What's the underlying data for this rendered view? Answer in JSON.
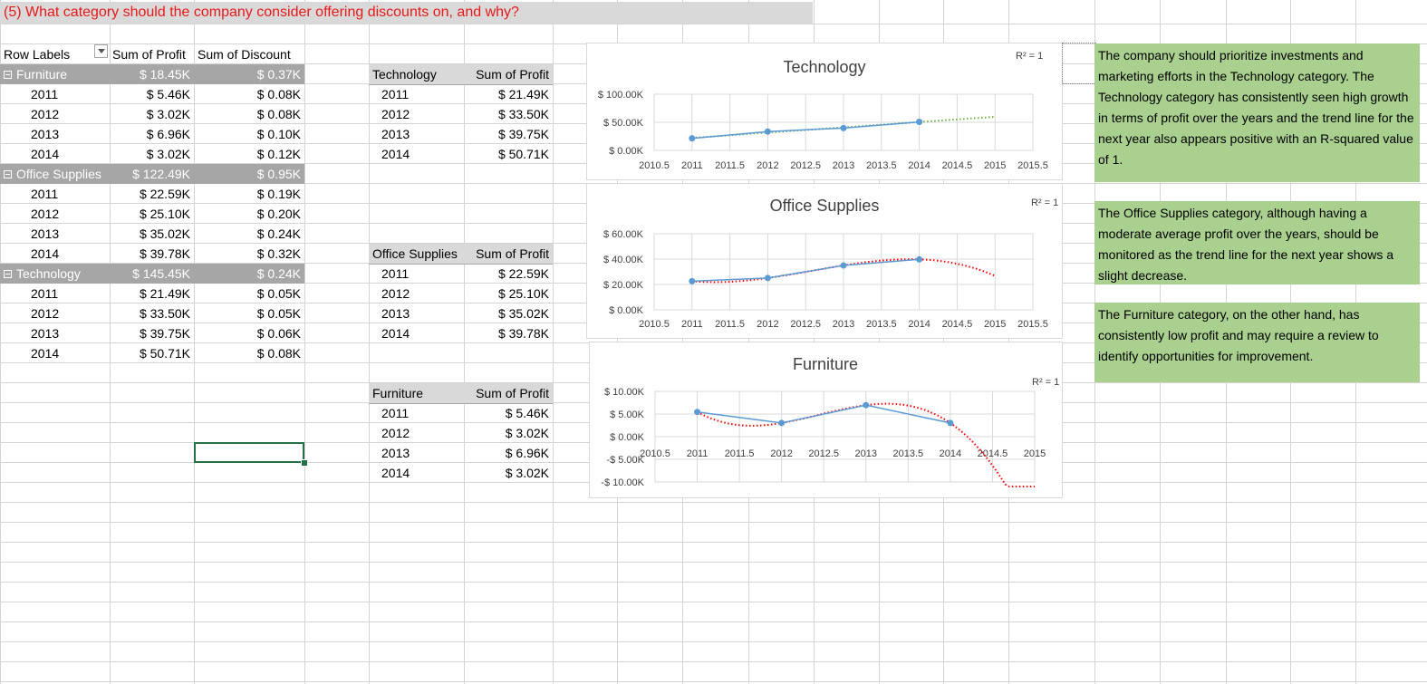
{
  "question": "(5) What category should the company consider offering discounts on, and why?",
  "pivot": {
    "headers": [
      "Row Labels",
      "Sum of Profit",
      "Sum of Discount"
    ],
    "groups": [
      {
        "label": "Furniture",
        "profit": "$ 18.45K",
        "discount": "$ 0.37K",
        "rows": [
          {
            "year": "2011",
            "profit": "$ 5.46K",
            "discount": "$ 0.08K"
          },
          {
            "year": "2012",
            "profit": "$ 3.02K",
            "discount": "$ 0.08K"
          },
          {
            "year": "2013",
            "profit": "$ 6.96K",
            "discount": "$ 0.10K"
          },
          {
            "year": "2014",
            "profit": "$ 3.02K",
            "discount": "$ 0.12K"
          }
        ]
      },
      {
        "label": "Office Supplies",
        "profit": "$ 122.49K",
        "discount": "$ 0.95K",
        "rows": [
          {
            "year": "2011",
            "profit": "$ 22.59K",
            "discount": "$ 0.19K"
          },
          {
            "year": "2012",
            "profit": "$ 25.10K",
            "discount": "$ 0.20K"
          },
          {
            "year": "2013",
            "profit": "$ 35.02K",
            "discount": "$ 0.24K"
          },
          {
            "year": "2014",
            "profit": "$ 39.78K",
            "discount": "$ 0.32K"
          }
        ]
      },
      {
        "label": "Technology",
        "profit": "$ 145.45K",
        "discount": "$ 0.24K",
        "rows": [
          {
            "year": "2011",
            "profit": "$ 21.49K",
            "discount": "$ 0.05K"
          },
          {
            "year": "2012",
            "profit": "$ 33.50K",
            "discount": "$ 0.05K"
          },
          {
            "year": "2013",
            "profit": "$ 39.75K",
            "discount": "$ 0.06K"
          },
          {
            "year": "2014",
            "profit": "$ 50.71K",
            "discount": "$ 0.08K"
          }
        ]
      }
    ]
  },
  "small_tables": [
    {
      "title": "Technology",
      "col": "Sum of Profit",
      "rows": [
        [
          "2011",
          "$ 21.49K"
        ],
        [
          "2012",
          "$ 33.50K"
        ],
        [
          "2013",
          "$ 39.75K"
        ],
        [
          "2014",
          "$ 50.71K"
        ]
      ]
    },
    {
      "title": "Office Supplies",
      "col": "Sum of Profit",
      "rows": [
        [
          "2011",
          "$ 22.59K"
        ],
        [
          "2012",
          "$ 25.10K"
        ],
        [
          "2013",
          "$ 35.02K"
        ],
        [
          "2014",
          "$ 39.78K"
        ]
      ]
    },
    {
      "title": "Furniture",
      "col": "Sum of Profit",
      "rows": [
        [
          "2011",
          "$ 5.46K"
        ],
        [
          "2012",
          "$ 3.02K"
        ],
        [
          "2013",
          "$ 6.96K"
        ],
        [
          "2014",
          "$ 3.02K"
        ]
      ]
    }
  ],
  "chart_data": [
    {
      "type": "scatter",
      "title": "Technology",
      "r_squared": "R² = 1",
      "x": [
        2011,
        2012,
        2013,
        2014
      ],
      "y": [
        21.49,
        33.5,
        39.75,
        50.71
      ],
      "xlim": [
        2010.5,
        2015.5
      ],
      "ylim": [
        0,
        100
      ],
      "xticks": [
        "2010.5",
        "2011",
        "2011.5",
        "2012",
        "2012.5",
        "2013",
        "2013.5",
        "2014",
        "2014.5",
        "2015",
        "2015.5"
      ],
      "yticks": [
        "$ 0.00K",
        "$ 50.00K",
        "$ 100.00K"
      ],
      "trendline": "linear",
      "trend_color": "#70ad47",
      "point_color": "#5b9bd5"
    },
    {
      "type": "scatter",
      "title": "Office Supplies",
      "r_squared": "R² = 1",
      "x": [
        2011,
        2012,
        2013,
        2014
      ],
      "y": [
        22.59,
        25.1,
        35.02,
        39.78
      ],
      "xlim": [
        2010.5,
        2015.5
      ],
      "ylim": [
        0,
        60
      ],
      "xticks": [
        "2010.5",
        "2011",
        "2011.5",
        "2012",
        "2012.5",
        "2013",
        "2013.5",
        "2014",
        "2014.5",
        "2015",
        "2015.5"
      ],
      "yticks": [
        "$ 0.00K",
        "$ 20.00K",
        "$ 40.00K",
        "$ 60.00K"
      ],
      "trendline": "polynomial",
      "trend_color": "#ff0000",
      "point_color": "#5b9bd5"
    },
    {
      "type": "scatter",
      "title": "Furniture",
      "r_squared": "R² = 1",
      "x": [
        2011,
        2012,
        2013,
        2014
      ],
      "y": [
        5.46,
        3.02,
        6.96,
        3.02
      ],
      "xlim": [
        2010.5,
        2015
      ],
      "ylim": [
        -10,
        10
      ],
      "xticks": [
        "2010.5",
        "2011",
        "2011.5",
        "2012",
        "2012.5",
        "2013",
        "2013.5",
        "2014",
        "2014.5",
        "2015"
      ],
      "yticks": [
        "-$ 10.00K",
        "-$ 5.00K",
        "$ 0.00K",
        "$ 5.00K",
        "$ 10.00K"
      ],
      "trendline": "polynomial",
      "trend_color": "#ff0000",
      "point_color": "#5b9bd5"
    }
  ],
  "notes": [
    "The company should prioritize investments and marketing efforts in the Technology category. The Technology category has consistently seen high growth in terms of profit over the years and the trend line for the next year also appears positive with an R-squared value of 1.",
    "The Office Supplies category, although having a moderate average profit over the years, should be monitored as the trend line for the next year shows a slight decrease.",
    "The Furniture category, on the other hand, has consistently low profit and may require a review to identify opportunities for improvement."
  ],
  "colors": {
    "title_red": "#e81a1a",
    "pivot_header": "#a6a6a6",
    "note_green": "#a9d08e",
    "selection": "#217346"
  }
}
